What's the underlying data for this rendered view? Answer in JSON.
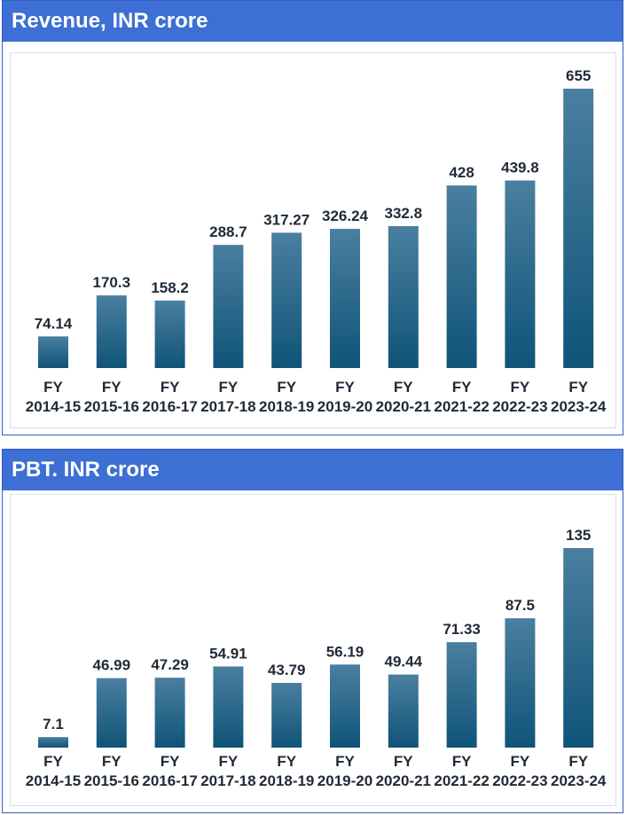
{
  "charts": {
    "revenue": {
      "title": "Revenue, INR crore"
    },
    "pbt": {
      "title": "PBT. INR crore"
    }
  },
  "colors": {
    "header": "#3d6fd4",
    "bar_top": "#4a7fa0",
    "bar_bottom": "#0f5478",
    "text": "#1f2a36"
  },
  "chart_data": [
    {
      "type": "bar",
      "title": "Revenue, INR crore",
      "categories": [
        "FY 2014-15",
        "FY 2015-16",
        "FY 2016-17",
        "FY 2017-18",
        "FY 2018-19",
        "FY 2019-20",
        "FY 2020-21",
        "FY 2021-22",
        "FY 2022-23",
        "FY 2023-24"
      ],
      "category_lines": [
        [
          "FY",
          "2014-15"
        ],
        [
          "FY",
          "2015-16"
        ],
        [
          "FY",
          "2016-17"
        ],
        [
          "FY",
          "2017-18"
        ],
        [
          "FY",
          "2018-19"
        ],
        [
          "FY",
          "2019-20"
        ],
        [
          "FY",
          "2020-21"
        ],
        [
          "FY",
          "2021-22"
        ],
        [
          "FY",
          "2022-23"
        ],
        [
          "FY",
          "2023-24"
        ]
      ],
      "values": [
        74.14,
        170.3,
        158.2,
        288.7,
        317.27,
        326.24,
        332.8,
        428,
        439.8,
        655
      ],
      "labels": [
        "74.14",
        "170.3",
        "158.2",
        "288.7",
        "317.27",
        "326.24",
        "332.8",
        "428",
        "439.8",
        "655"
      ],
      "ylim": [
        0,
        655
      ],
      "grid": false,
      "legend": "none"
    },
    {
      "type": "bar",
      "title": "PBT. INR crore",
      "categories": [
        "FY 2014-15",
        "FY 2015-16",
        "FY 2016-17",
        "FY 2017-18",
        "FY 2018-19",
        "FY 2019-20",
        "FY 2020-21",
        "FY 2021-22",
        "FY 2022-23",
        "FY 2023-24"
      ],
      "category_lines": [
        [
          "FY",
          "2014-15"
        ],
        [
          "FY",
          "2015-16"
        ],
        [
          "FY",
          "2016-17"
        ],
        [
          "FY",
          "2017-18"
        ],
        [
          "FY",
          "2018-19"
        ],
        [
          "FY",
          "2019-20"
        ],
        [
          "FY",
          "2020-21"
        ],
        [
          "FY",
          "2021-22"
        ],
        [
          "FY",
          "2022-23"
        ],
        [
          "FY",
          "2023-24"
        ]
      ],
      "values": [
        7.1,
        46.99,
        47.29,
        54.91,
        43.79,
        56.19,
        49.44,
        71.33,
        87.5,
        135
      ],
      "labels": [
        "7.1",
        "46.99",
        "47.29",
        "54.91",
        "43.79",
        "56.19",
        "49.44",
        "71.33",
        "87.5",
        "135"
      ],
      "ylim": [
        0,
        135
      ],
      "grid": false,
      "legend": "none"
    }
  ]
}
